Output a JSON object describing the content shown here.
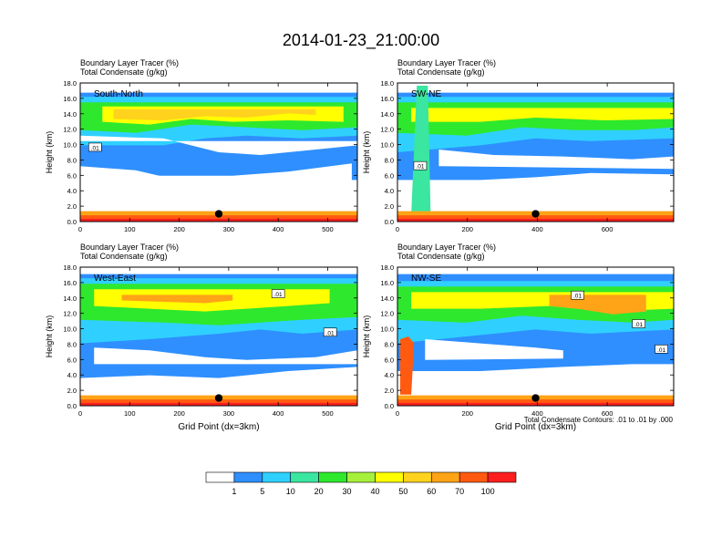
{
  "title": "2014-01-23_21:00:00",
  "footnote": "Total Condensate Contours: .01 to .01 by .000",
  "colorbar": {
    "colors": [
      "#ffffff",
      "#2f8fff",
      "#2fd0ff",
      "#3ae6a0",
      "#2ee82e",
      "#a6f03c",
      "#ffff00",
      "#ffd21e",
      "#ffa317",
      "#ff5a10",
      "#ff1e1e"
    ],
    "labels": [
      "1",
      "5",
      "10",
      "20",
      "30",
      "40",
      "50",
      "60",
      "70",
      "100"
    ]
  },
  "chart_data": [
    {
      "type": "heatmap",
      "title": "South-North",
      "subtitle_lines": [
        "Boundary Layer Tracer   (%)",
        "Total Condensate   (g/kg)"
      ],
      "ylabel": "Height (km)",
      "xlabel": "",
      "xlim": [
        0,
        560
      ],
      "ylim": [
        0,
        18
      ],
      "xticks": [
        0,
        100,
        200,
        300,
        400,
        500
      ],
      "yticks": [
        "0.0",
        "2.0",
        "4.0",
        "6.0",
        "8.0",
        "10.0",
        "12.0",
        "14.0",
        "16.0",
        "18.0"
      ],
      "marker": {
        "x": 280,
        "y": 1.0
      },
      "contour_labels": [
        {
          "text": ".01",
          "x": 30,
          "y": 9.6
        }
      ]
    },
    {
      "type": "heatmap",
      "title": "SW-NE",
      "subtitle_lines": [
        "Boundary Layer Tracer   (%)",
        "Total Condensate   (g/kg)"
      ],
      "ylabel": "Height (km)",
      "xlabel": "",
      "xlim": [
        0,
        790
      ],
      "ylim": [
        0,
        18
      ],
      "xticks": [
        0,
        200,
        400,
        600
      ],
      "yticks": [
        "0.0",
        "2.0",
        "4.0",
        "6.0",
        "8.0",
        "10.0",
        "12.0",
        "14.0",
        "16.0",
        "18.0"
      ],
      "marker": {
        "x": 395,
        "y": 1.0
      },
      "contour_labels": [
        {
          "text": ".01",
          "x": 65,
          "y": 7.2
        }
      ]
    },
    {
      "type": "heatmap",
      "title": "West-East",
      "subtitle_lines": [
        "Boundary Layer Tracer   (%)",
        "Total Condensate   (g/kg)"
      ],
      "ylabel": "Height (km)",
      "xlabel": "Grid Point (dx=3km)",
      "xlim": [
        0,
        560
      ],
      "ylim": [
        0,
        18
      ],
      "xticks": [
        0,
        100,
        200,
        300,
        400,
        500
      ],
      "yticks": [
        "0.0",
        "2.0",
        "4.0",
        "6.0",
        "8.0",
        "10.0",
        "12.0",
        "14.0",
        "16.0",
        "18.0"
      ],
      "marker": {
        "x": 280,
        "y": 1.0
      },
      "contour_labels": [
        {
          "text": ".01",
          "x": 400,
          "y": 14.5
        },
        {
          "text": ".01",
          "x": 505,
          "y": 9.5
        }
      ]
    },
    {
      "type": "heatmap",
      "title": "NW-SE",
      "subtitle_lines": [
        "Boundary Layer Tracer   (%)",
        "Total Condensate   (g/kg)"
      ],
      "ylabel": "Height (km)",
      "xlabel": "Grid Point (dx=3km)",
      "xlim": [
        0,
        790
      ],
      "ylim": [
        0,
        18
      ],
      "xticks": [
        0,
        200,
        400,
        600
      ],
      "yticks": [
        "0.0",
        "2.0",
        "4.0",
        "6.0",
        "8.0",
        "10.0",
        "12.0",
        "14.0",
        "16.0",
        "18.0"
      ],
      "marker": {
        "x": 395,
        "y": 1.0
      },
      "contour_labels": [
        {
          "text": ".01",
          "x": 515,
          "y": 14.3
        },
        {
          "text": ".01",
          "x": 690,
          "y": 10.6
        },
        {
          "text": ".01",
          "x": 755,
          "y": 7.3
        }
      ]
    }
  ]
}
